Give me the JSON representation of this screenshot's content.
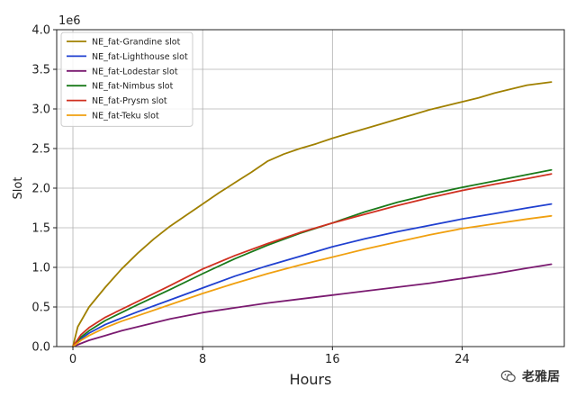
{
  "chart_data": {
    "type": "line",
    "title": "",
    "xlabel": "Hours",
    "ylabel": "Slot",
    "y_offset_label": "1e6",
    "xlim": [
      -1.0,
      30.3
    ],
    "ylim": [
      0,
      4.0
    ],
    "x_ticks": [
      0,
      8,
      16,
      24
    ],
    "x_tick_labels": [
      "0",
      "8",
      "16",
      "24"
    ],
    "y_ticks": [
      0,
      0.5,
      1.0,
      1.5,
      2.0,
      2.5,
      3.0,
      3.5,
      4.0
    ],
    "y_tick_labels": [
      "0.0",
      "0.5",
      "1.0",
      "1.5",
      "2.0",
      "2.5",
      "3.0",
      "3.5",
      "4.0"
    ],
    "grid": true,
    "legend_position": "top-left",
    "series": [
      {
        "name": "NE_fat-Grandine slot",
        "color": "#a08000",
        "x": [
          0,
          0.3,
          1,
          2,
          3,
          4,
          5,
          6,
          7,
          8,
          9,
          10,
          11,
          12,
          13,
          14,
          15,
          16,
          17,
          18,
          19,
          20,
          21,
          22,
          23,
          24,
          25,
          26,
          27,
          28,
          29.5
        ],
        "y": [
          0,
          0.25,
          0.5,
          0.75,
          0.98,
          1.18,
          1.36,
          1.52,
          1.66,
          1.8,
          1.94,
          2.07,
          2.2,
          2.34,
          2.43,
          2.5,
          2.56,
          2.63,
          2.69,
          2.75,
          2.81,
          2.87,
          2.93,
          2.99,
          3.04,
          3.09,
          3.14,
          3.2,
          3.25,
          3.3,
          3.34
        ]
      },
      {
        "name": "NE_fat-Lighthouse slot",
        "color": "#2040d0",
        "x": [
          0,
          0.5,
          1,
          2,
          3,
          4,
          6,
          8,
          10,
          12,
          14,
          16,
          18,
          20,
          22,
          24,
          26,
          28,
          29.5
        ],
        "y": [
          0,
          0.1,
          0.17,
          0.28,
          0.36,
          0.44,
          0.59,
          0.74,
          0.89,
          1.02,
          1.14,
          1.26,
          1.36,
          1.45,
          1.53,
          1.61,
          1.68,
          1.75,
          1.8
        ]
      },
      {
        "name": "NE_fat-Lodestar slot",
        "color": "#7a1a70",
        "x": [
          0,
          0.5,
          1,
          2,
          3,
          4,
          6,
          8,
          10,
          12,
          14,
          16,
          18,
          20,
          22,
          24,
          26,
          28,
          29.5
        ],
        "y": [
          0,
          0.04,
          0.08,
          0.14,
          0.2,
          0.25,
          0.35,
          0.43,
          0.49,
          0.55,
          0.6,
          0.65,
          0.7,
          0.75,
          0.8,
          0.86,
          0.92,
          0.99,
          1.04
        ]
      },
      {
        "name": "NE_fat-Nimbus slot",
        "color": "#1a7a1a",
        "x": [
          0,
          0.5,
          1,
          2,
          3,
          4,
          6,
          8,
          10,
          12,
          14,
          16,
          18,
          20,
          22,
          24,
          26,
          28,
          29.5
        ],
        "y": [
          0,
          0.12,
          0.2,
          0.33,
          0.43,
          0.53,
          0.72,
          0.92,
          1.11,
          1.28,
          1.43,
          1.56,
          1.7,
          1.82,
          1.92,
          2.01,
          2.09,
          2.17,
          2.23
        ]
      },
      {
        "name": "NE_fat-Prysm slot",
        "color": "#d03020",
        "x": [
          0,
          0.5,
          1,
          2,
          3,
          4,
          6,
          8,
          10,
          12,
          14,
          16,
          18,
          20,
          22,
          24,
          26,
          28,
          29.5
        ],
        "y": [
          0,
          0.15,
          0.24,
          0.37,
          0.47,
          0.57,
          0.77,
          0.98,
          1.15,
          1.3,
          1.44,
          1.56,
          1.67,
          1.78,
          1.88,
          1.97,
          2.05,
          2.12,
          2.18
        ]
      },
      {
        "name": "NE_fat-Teku slot",
        "color": "#f0a010",
        "x": [
          0,
          0.5,
          1,
          2,
          3,
          4,
          6,
          8,
          10,
          12,
          14,
          16,
          18,
          20,
          22,
          24,
          26,
          28,
          29.5
        ],
        "y": [
          0,
          0.08,
          0.14,
          0.24,
          0.32,
          0.39,
          0.53,
          0.67,
          0.8,
          0.92,
          1.03,
          1.13,
          1.23,
          1.32,
          1.41,
          1.49,
          1.55,
          1.61,
          1.65
        ]
      }
    ]
  },
  "watermark": {
    "text": "老雅居"
  }
}
